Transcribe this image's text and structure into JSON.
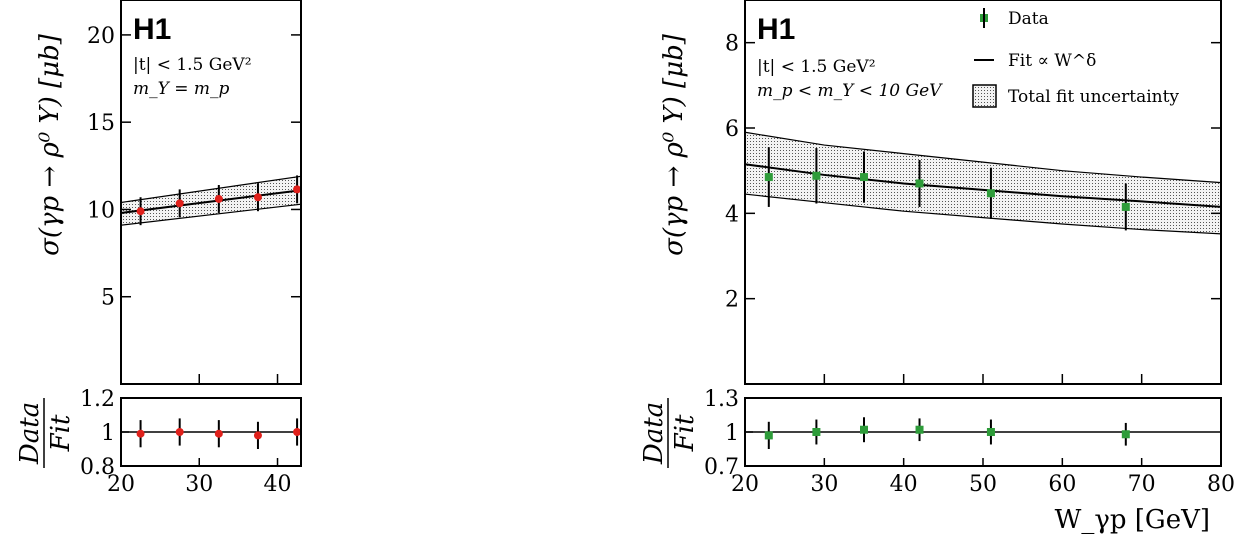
{
  "chart_data": [
    {
      "type": "scatter",
      "experiment": "H1",
      "annotations": [
        "|t| < 1.5 GeV²",
        "m_Y = m_p"
      ],
      "ylabel": "σ(γp → ρ⁰ Y) [μb]",
      "xlabel": "",
      "xlim": [
        20,
        43
      ],
      "ylim": [
        0,
        22
      ],
      "ratio_ylim": [
        0.8,
        1.2
      ],
      "x_ticks": [
        20,
        30,
        40
      ],
      "y_ticks": [
        5,
        10,
        15,
        20
      ],
      "ratio_ticks": [
        0.8,
        1,
        1.2
      ],
      "ratio_tick_labels": [
        "0.8",
        "1",
        "1.2"
      ],
      "ratio_label_num": "Data",
      "ratio_label_den": "Fit",
      "marker": "circle",
      "marker_color": "#e0201b",
      "band_color": "#888888",
      "series": [
        {
          "x": [
            22.5,
            27.5,
            32.5,
            37.5,
            42.5
          ],
          "y": [
            9.9,
            10.35,
            10.6,
            10.7,
            11.15
          ],
          "err": [
            0.8,
            0.8,
            0.8,
            0.8,
            0.8
          ]
        }
      ],
      "fit": {
        "points": [
          [
            20,
            9.8
          ],
          [
            43,
            11.1
          ]
        ],
        "band_low": [
          [
            20,
            9.1
          ],
          [
            43,
            10.3
          ]
        ],
        "band_high": [
          [
            20,
            10.4
          ],
          [
            43,
            11.9
          ]
        ]
      },
      "ratio": {
        "x": [
          22.5,
          27.5,
          32.5,
          37.5,
          42.5
        ],
        "y": [
          0.99,
          1.0,
          0.99,
          0.98,
          1.0
        ],
        "err": [
          0.08,
          0.08,
          0.08,
          0.08,
          0.08
        ]
      }
    },
    {
      "type": "scatter",
      "experiment": "H1",
      "annotations": [
        "|t| < 1.5 GeV²",
        "m_p < m_Y < 10 GeV"
      ],
      "ylabel": "σ(γp → ρ⁰ Y) [μb]",
      "xlabel": "W_γp [GeV]",
      "xlim": [
        20,
        80
      ],
      "ylim": [
        0,
        9
      ],
      "ratio_ylim": [
        0.7,
        1.3
      ],
      "x_ticks": [
        20,
        30,
        40,
        50,
        60,
        70,
        80
      ],
      "y_ticks": [
        2,
        4,
        6,
        8
      ],
      "ratio_ticks": [
        0.7,
        1,
        1.3
      ],
      "ratio_tick_labels": [
        "0.7",
        "1",
        "1.3"
      ],
      "ratio_label_num": "Data",
      "ratio_label_den": "Fit",
      "marker": "square",
      "marker_color": "#2e9c3a",
      "band_color": "#888888",
      "legend": {
        "position": "top-right",
        "entries": [
          "Data",
          "Fit ∝ W^δ",
          "Total fit uncertainty"
        ]
      },
      "series": [
        {
          "name": "Data",
          "x": [
            23,
            29,
            35,
            42,
            51,
            68
          ],
          "y": [
            4.85,
            4.88,
            4.85,
            4.7,
            4.47,
            4.15
          ],
          "err": [
            0.7,
            0.65,
            0.6,
            0.55,
            0.6,
            0.55
          ]
        }
      ],
      "fit": {
        "points": [
          [
            20,
            5.15
          ],
          [
            30,
            4.9
          ],
          [
            40,
            4.7
          ],
          [
            50,
            4.55
          ],
          [
            60,
            4.4
          ],
          [
            70,
            4.28
          ],
          [
            80,
            4.15
          ]
        ],
        "band_low": [
          [
            20,
            4.45
          ],
          [
            30,
            4.25
          ],
          [
            40,
            4.05
          ],
          [
            50,
            3.9
          ],
          [
            60,
            3.75
          ],
          [
            70,
            3.62
          ],
          [
            80,
            3.52
          ]
        ],
        "band_high": [
          [
            20,
            5.9
          ],
          [
            30,
            5.6
          ],
          [
            40,
            5.4
          ],
          [
            50,
            5.2
          ],
          [
            60,
            5.0
          ],
          [
            70,
            4.85
          ],
          [
            80,
            4.72
          ]
        ]
      },
      "ratio": {
        "x": [
          23,
          29,
          35,
          42,
          51,
          68
        ],
        "y": [
          0.97,
          1.0,
          1.02,
          1.02,
          1.0,
          0.98
        ],
        "err": [
          0.12,
          0.11,
          0.11,
          0.1,
          0.11,
          0.1
        ]
      }
    }
  ]
}
